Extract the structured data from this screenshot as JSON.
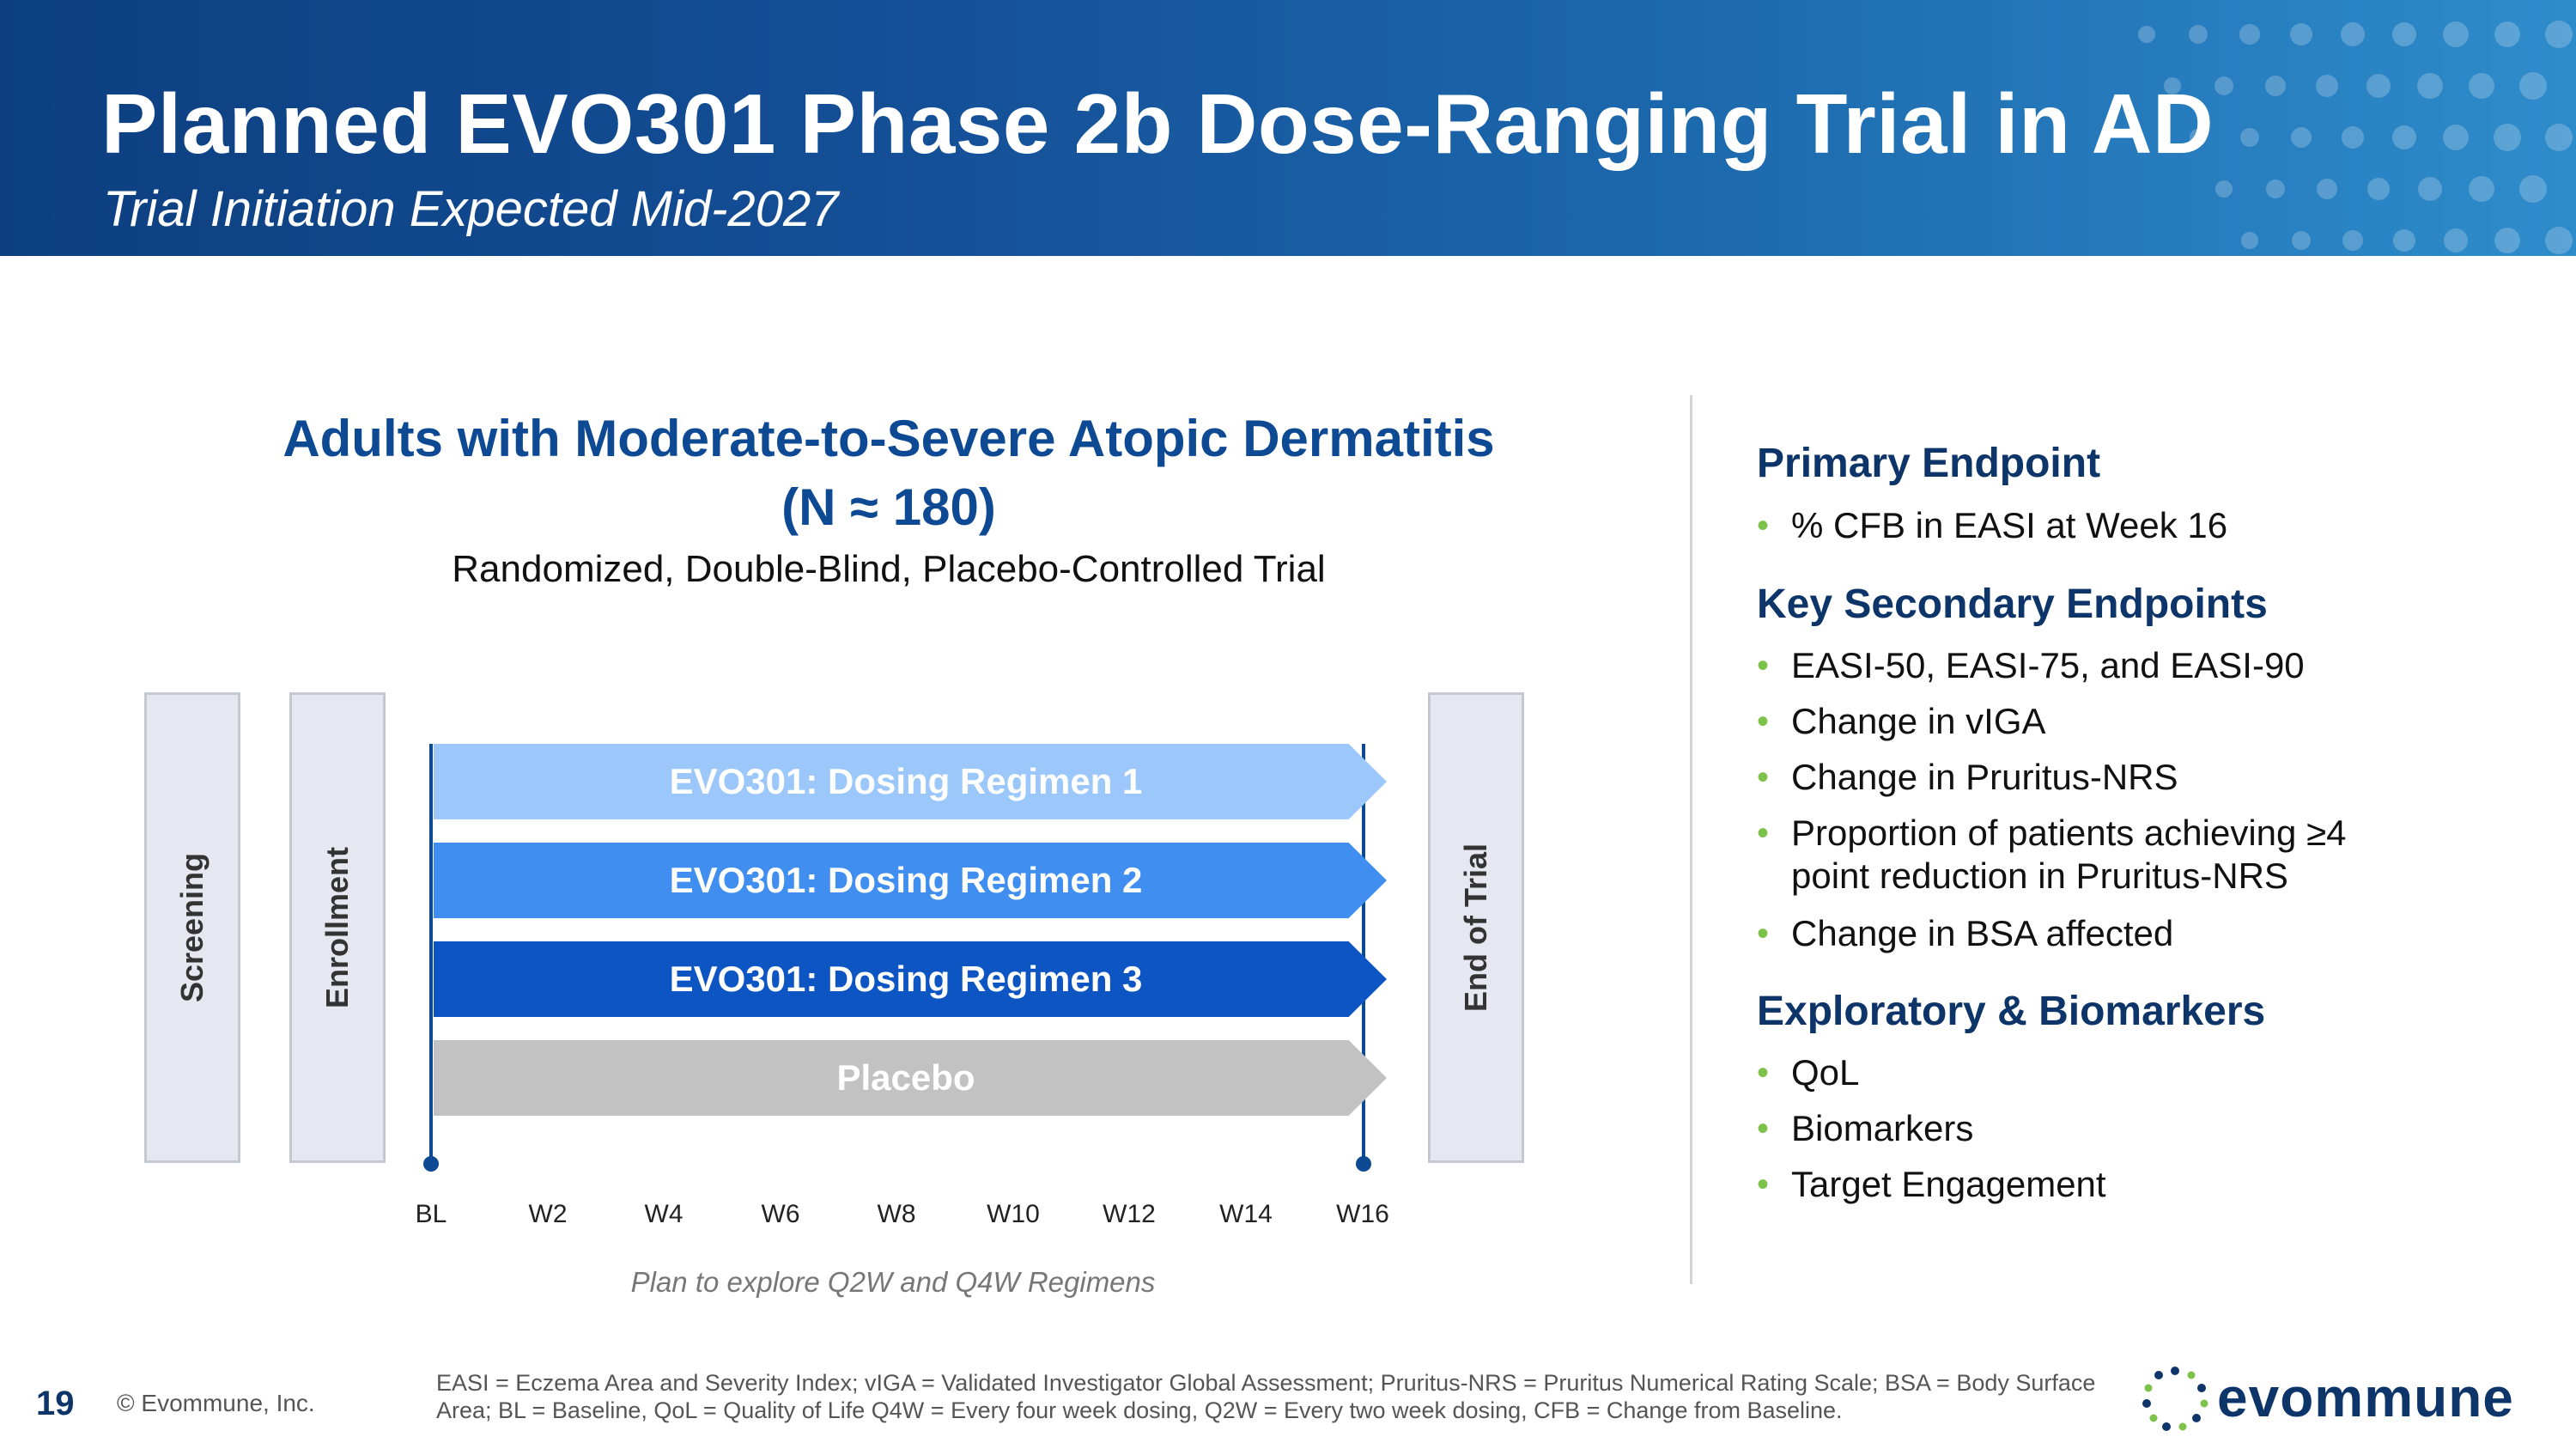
{
  "header": {
    "title": "Planned EVO301 Phase 2b Dose-Ranging Trial in AD",
    "subtitle": "Trial Initiation Expected Mid-2027"
  },
  "population": {
    "line1": "Adults with Moderate-to-Severe Atopic Dermatitis",
    "line2": "(N ≈ 180)",
    "design": "Randomized, Double-Blind, Placebo-Controlled Trial"
  },
  "phases": {
    "screening": "Screening",
    "enrollment": "Enrollment",
    "end": "End of Trial"
  },
  "arms": [
    {
      "label": "EVO301: Dosing Regimen 1",
      "color": "#9cc7fb"
    },
    {
      "label": "EVO301: Dosing Regimen 2",
      "color": "#3f8ef0"
    },
    {
      "label": "EVO301: Dosing Regimen 3",
      "color": "#0e55c4"
    },
    {
      "label": "Placebo",
      "color": "#c2c2c2"
    }
  ],
  "timeline": {
    "ticks": [
      "BL",
      "W2",
      "W4",
      "W6",
      "W8",
      "W10",
      "W12",
      "W14",
      "W16"
    ],
    "note": "Plan to explore Q2W and Q4W Regimens"
  },
  "endpoints": {
    "primary_title": "Primary Endpoint",
    "primary": [
      "% CFB in EASI at Week 16"
    ],
    "secondary_title": "Key Secondary Endpoints",
    "secondary": [
      "EASI-50, EASI-75, and EASI-90",
      "Change in vIGA",
      "Change in Pruritus-NRS",
      "Proportion of patients achieving ≥4 point reduction in Pruritus-NRS",
      "Change in BSA affected"
    ],
    "exploratory_title": "Exploratory & Biomarkers",
    "exploratory": [
      "QoL",
      "Biomarkers",
      "Target Engagement"
    ]
  },
  "footer": {
    "page": "19",
    "copyright": "© Evommune, Inc.",
    "footnote": "EASI = Eczema Area and Severity Index; vIGA = Validated Investigator Global Assessment; Pruritus-NRS = Pruritus Numerical Rating Scale; BSA = Body Surface Area; BL = Baseline, QoL = Quality of Life Q4W = Every four week dosing, Q2W = Every two week dosing, CFB = Change from Baseline.",
    "logo_text": "evommune"
  },
  "colors": {
    "brand_navy": "#0d3569",
    "brand_blue": "#0e4a94",
    "bullet_green": "#7dc24b"
  }
}
